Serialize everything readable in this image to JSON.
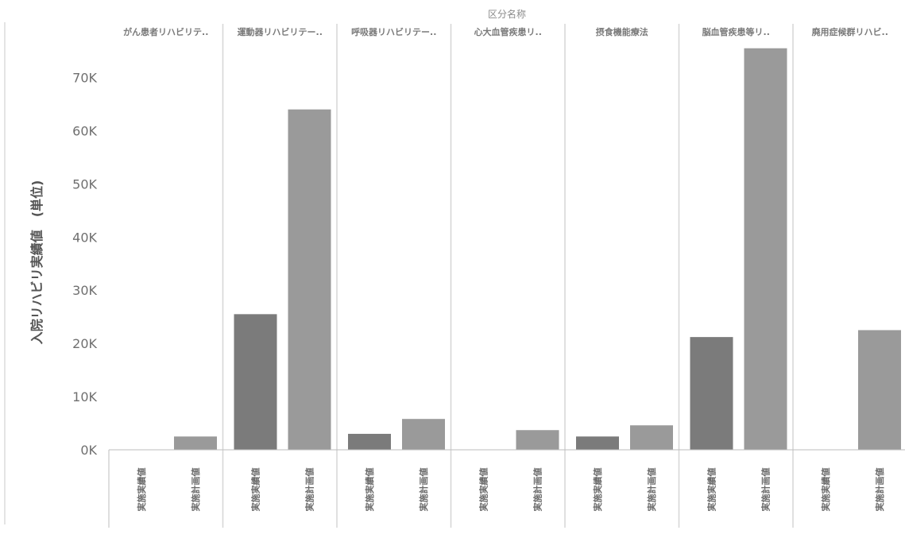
{
  "chart_data": {
    "type": "bar",
    "title": "区分名称",
    "ylabel": "入院リハビリ実績値　(単位)",
    "xlabel": "",
    "ylim": [
      0,
      78000
    ],
    "y_ticks": [
      0,
      10000,
      20000,
      30000,
      40000,
      50000,
      60000,
      70000
    ],
    "y_tick_labels": [
      "0K",
      "10K",
      "20K",
      "30K",
      "40K",
      "50K",
      "60K",
      "70K"
    ],
    "grid": false,
    "legend": "none",
    "groups": [
      {
        "label": "がん患者リハビリテ..",
        "bars": [
          {
            "label": "実施実績値",
            "value": 0
          },
          {
            "label": "実施計画値",
            "value": 2500
          }
        ]
      },
      {
        "label": "運動器リハビリテー..",
        "bars": [
          {
            "label": "実施実績値",
            "value": 25500
          },
          {
            "label": "実施計画値",
            "value": 64000
          }
        ]
      },
      {
        "label": "呼吸器リハビリテー..",
        "bars": [
          {
            "label": "実施実績値",
            "value": 3000
          },
          {
            "label": "実施計画値",
            "value": 5800
          }
        ]
      },
      {
        "label": "心大血管疾患リ..",
        "bars": [
          {
            "label": "実施実績値",
            "value": 0
          },
          {
            "label": "実施計画値",
            "value": 3700
          }
        ]
      },
      {
        "label": "摂食機能療法",
        "bars": [
          {
            "label": "実施実績値",
            "value": 2500
          },
          {
            "label": "実施計画値",
            "value": 4600
          }
        ]
      },
      {
        "label": "脳血管疾患等リ..",
        "bars": [
          {
            "label": "実施実績値",
            "value": 21200
          },
          {
            "label": "実施計画値",
            "value": 75500
          }
        ]
      },
      {
        "label": "廃用症候群リハビ..",
        "bars": [
          {
            "label": "実施実績値",
            "value": 0
          },
          {
            "label": "実施計画値",
            "value": 22500
          }
        ]
      }
    ],
    "colors": {
      "actual": "#7b7b7b",
      "plan": "#9a9a9a",
      "separator": "#d6d6d6",
      "axis": "#bdbdbd"
    }
  }
}
